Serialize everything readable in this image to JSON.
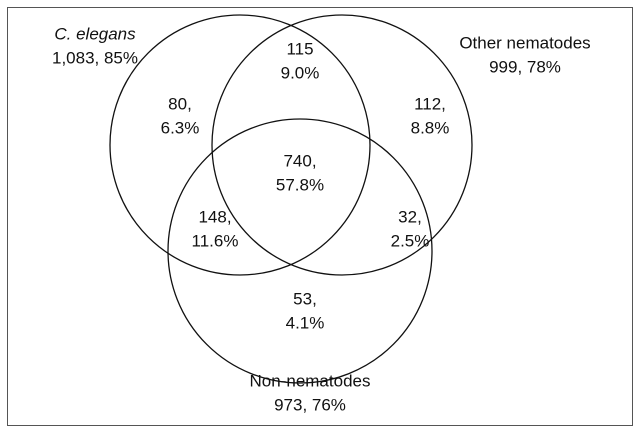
{
  "sets": [
    {
      "label": "C. elegans",
      "summary": "1,083, 85%"
    },
    {
      "label": "Other nematodes",
      "summary": "999, 78%"
    },
    {
      "label": "Non-nematodes",
      "summary": "973, 76%"
    }
  ],
  "regions": [
    {
      "count": "115",
      "percent": "9.0%"
    },
    {
      "count": "80,",
      "percent": "6.3%"
    },
    {
      "count": "112,",
      "percent": "8.8%"
    },
    {
      "count": "740,",
      "percent": "57.8%"
    },
    {
      "count": "148,",
      "percent": "11.6%"
    },
    {
      "count": "32,",
      "percent": "2.5%"
    },
    {
      "count": "53,",
      "percent": "4.1%"
    }
  ]
}
